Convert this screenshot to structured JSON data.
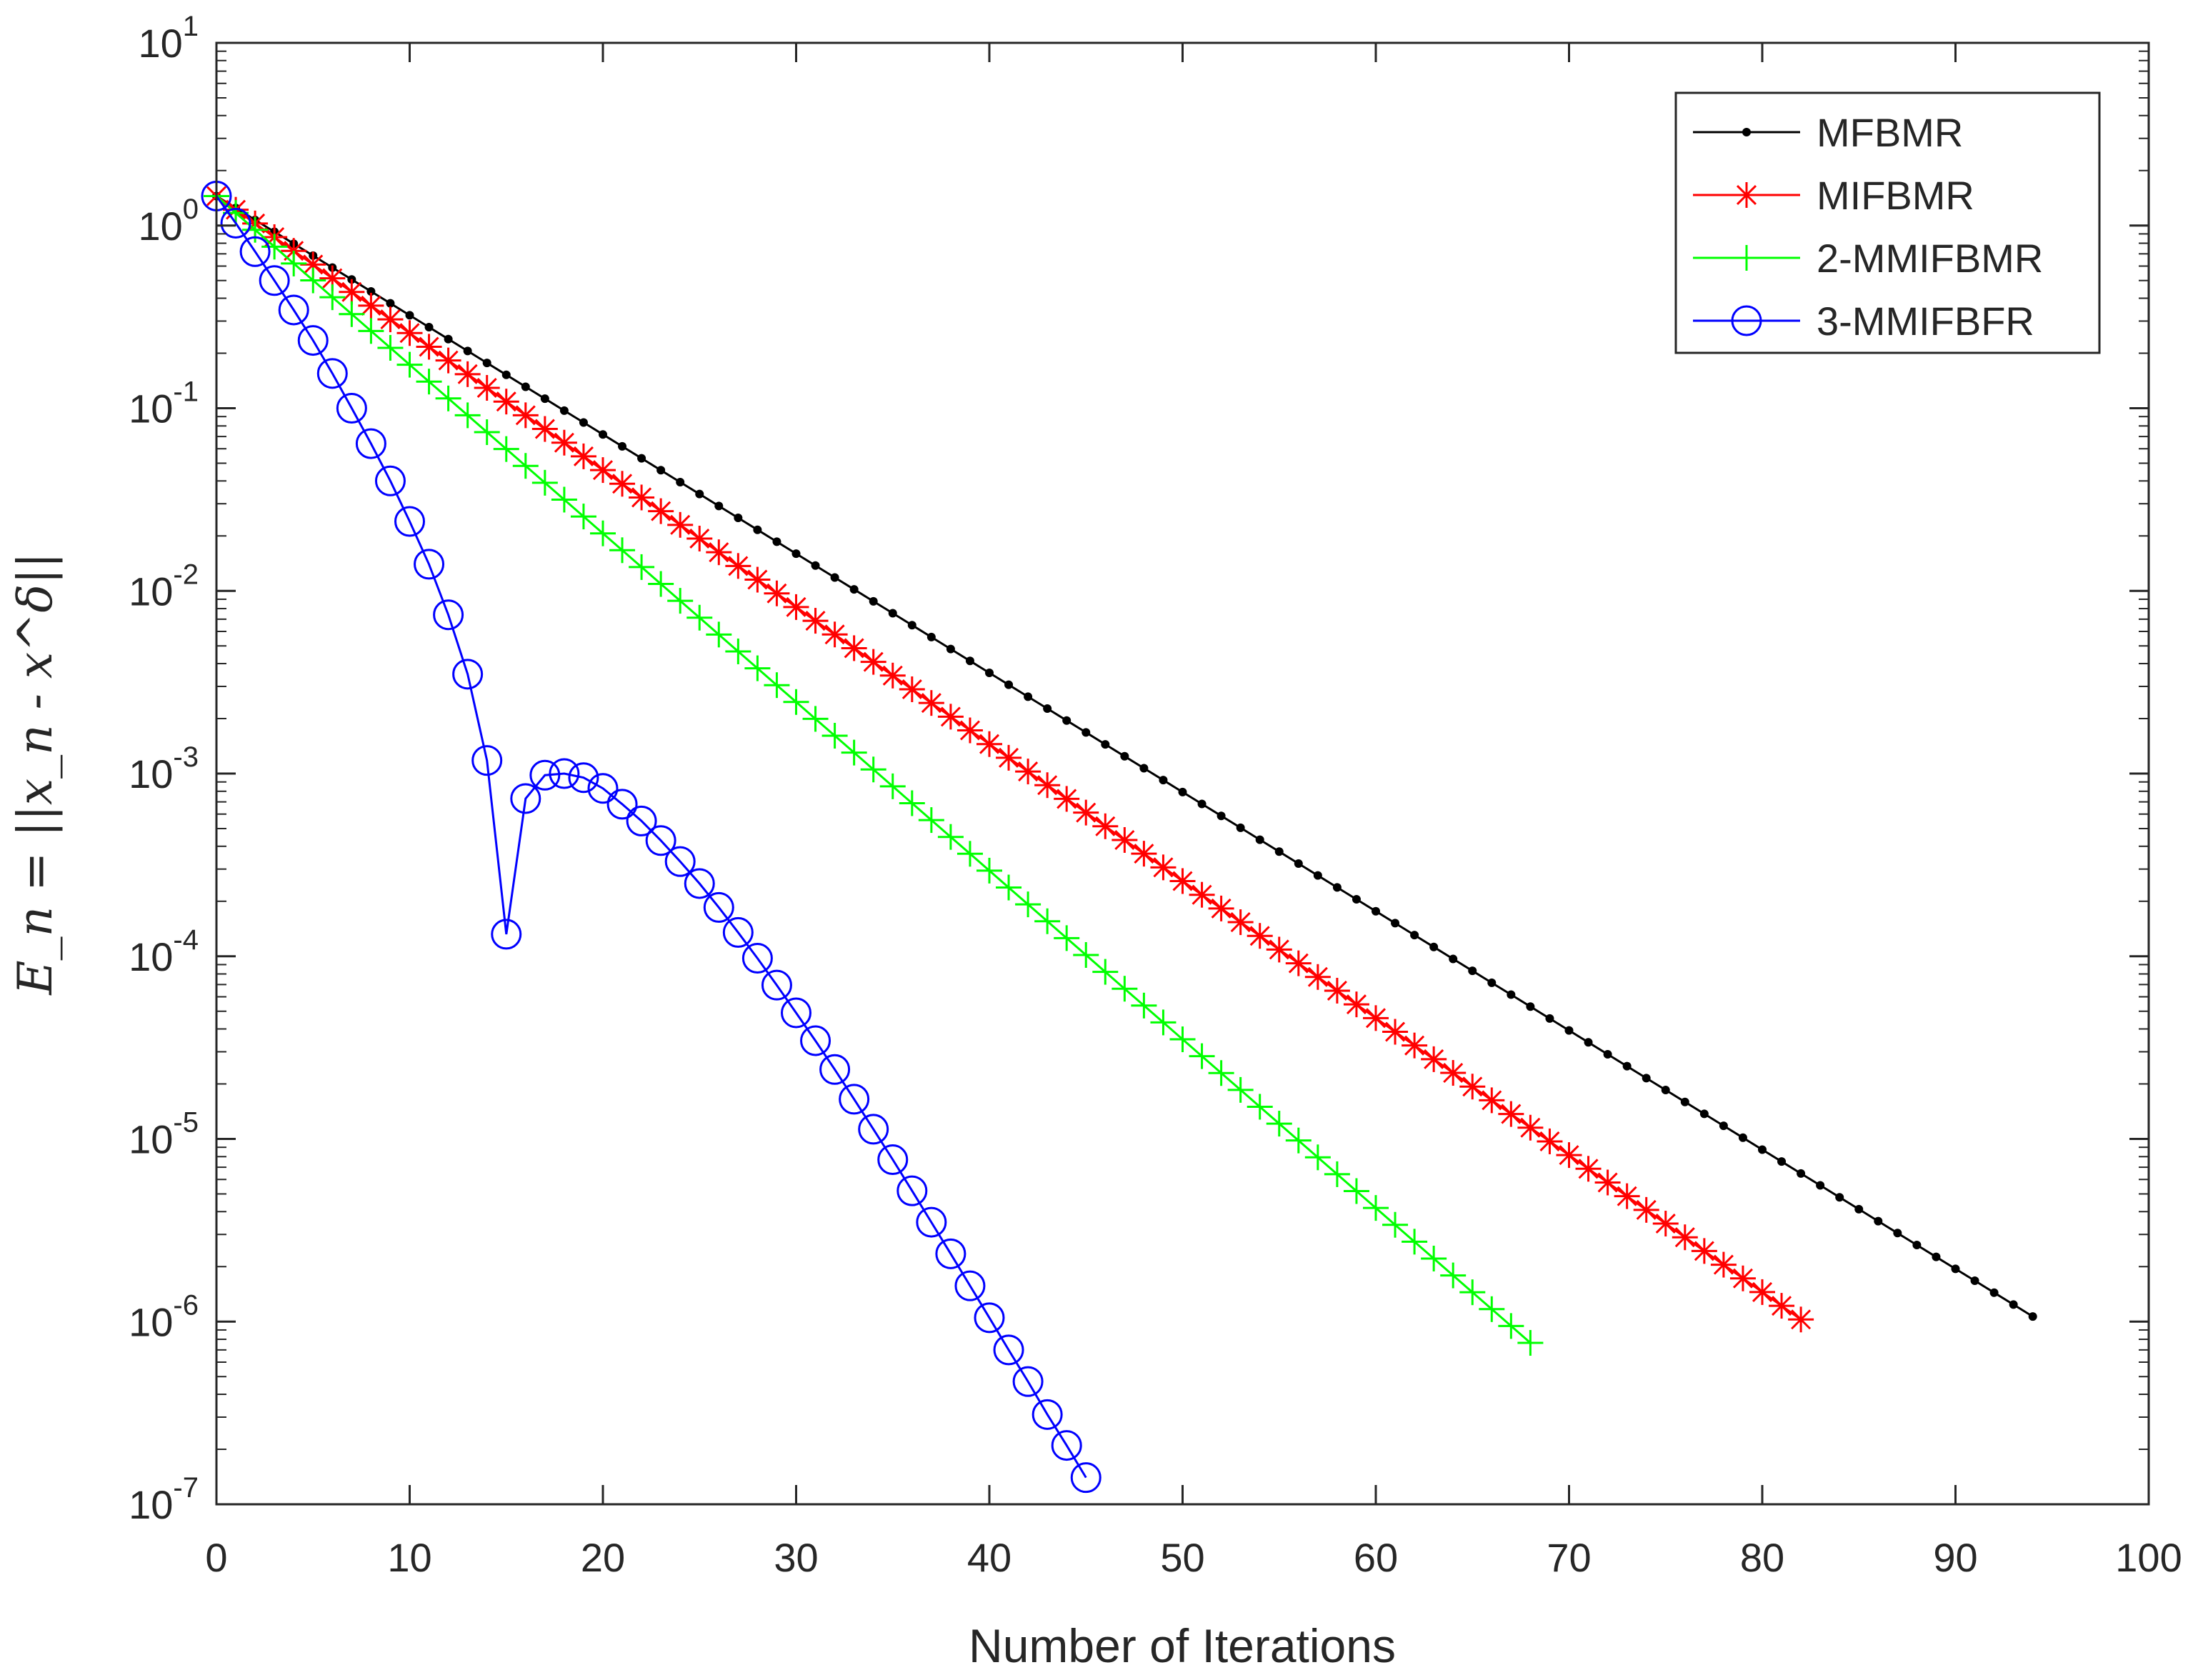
{
  "chart_data": {
    "type": "line",
    "title": "",
    "xlabel": "Number of Iterations",
    "ylabel": "E_n = ||x_n - x^δ||",
    "yscale": "log",
    "xlim": [
      0,
      100
    ],
    "ylim_exp": [
      -7,
      1
    ],
    "x_ticks": [
      0,
      10,
      20,
      30,
      40,
      50,
      60,
      70,
      80,
      90,
      100
    ],
    "y_ticks": [
      {
        "base": "10",
        "exp": "1"
      },
      {
        "base": "10",
        "exp": "0"
      },
      {
        "base": "10",
        "exp": "-1"
      },
      {
        "base": "10",
        "exp": "-2"
      },
      {
        "base": "10",
        "exp": "-3"
      },
      {
        "base": "10",
        "exp": "-4"
      },
      {
        "base": "10",
        "exp": "-5"
      },
      {
        "base": "10",
        "exp": "-6"
      },
      {
        "base": "10",
        "exp": "-7"
      }
    ],
    "legend_position": "top-right",
    "series": [
      {
        "name": "MFBMR",
        "color": "#000000",
        "marker": "dot",
        "y0": 1.45,
        "rate": 0.8605,
        "n_last": 94
      },
      {
        "name": "MIFBMR",
        "color": "#ff0000",
        "marker": "asterisk",
        "y0": 1.45,
        "rate": 0.8414,
        "n_last": 82
      },
      {
        "name": "2-MMIFBMR",
        "color": "#00ff00",
        "marker": "plus",
        "y0": 1.45,
        "rate": 0.8085,
        "n_last": 68
      },
      {
        "name": "3-MMIFBFR",
        "color": "#0000ff",
        "marker": "circle",
        "x": [
          0,
          1,
          2,
          3,
          4,
          5,
          6,
          7,
          8,
          9,
          10,
          11,
          12,
          13,
          14,
          15,
          16,
          17,
          18,
          19,
          20,
          21,
          22,
          23,
          24,
          25,
          26,
          27,
          28,
          29,
          30,
          31,
          32,
          33,
          34,
          35,
          36,
          37,
          38,
          39,
          40,
          41,
          42,
          43,
          44,
          45
        ],
        "values": [
          1.45,
          1.03,
          0.72,
          0.5,
          0.345,
          0.235,
          0.155,
          0.1,
          0.064,
          0.04,
          0.024,
          0.014,
          0.0074,
          0.0035,
          0.00118,
          0.000132,
          0.00073,
          0.00098,
          0.001,
          0.00095,
          0.00083,
          0.00068,
          0.00055,
          0.00043,
          0.00033,
          0.00025,
          0.000185,
          0.000135,
          9.75e-05,
          6.95e-05,
          4.9e-05,
          3.45e-05,
          2.4e-05,
          1.65e-05,
          1.13e-05,
          7.7e-06,
          5.2e-06,
          3.5e-06,
          2.35e-06,
          1.57e-06,
          1.05e-06,
          7e-07,
          4.7e-07,
          3.1e-07,
          2.1e-07,
          1.4e-07
        ]
      }
    ]
  }
}
